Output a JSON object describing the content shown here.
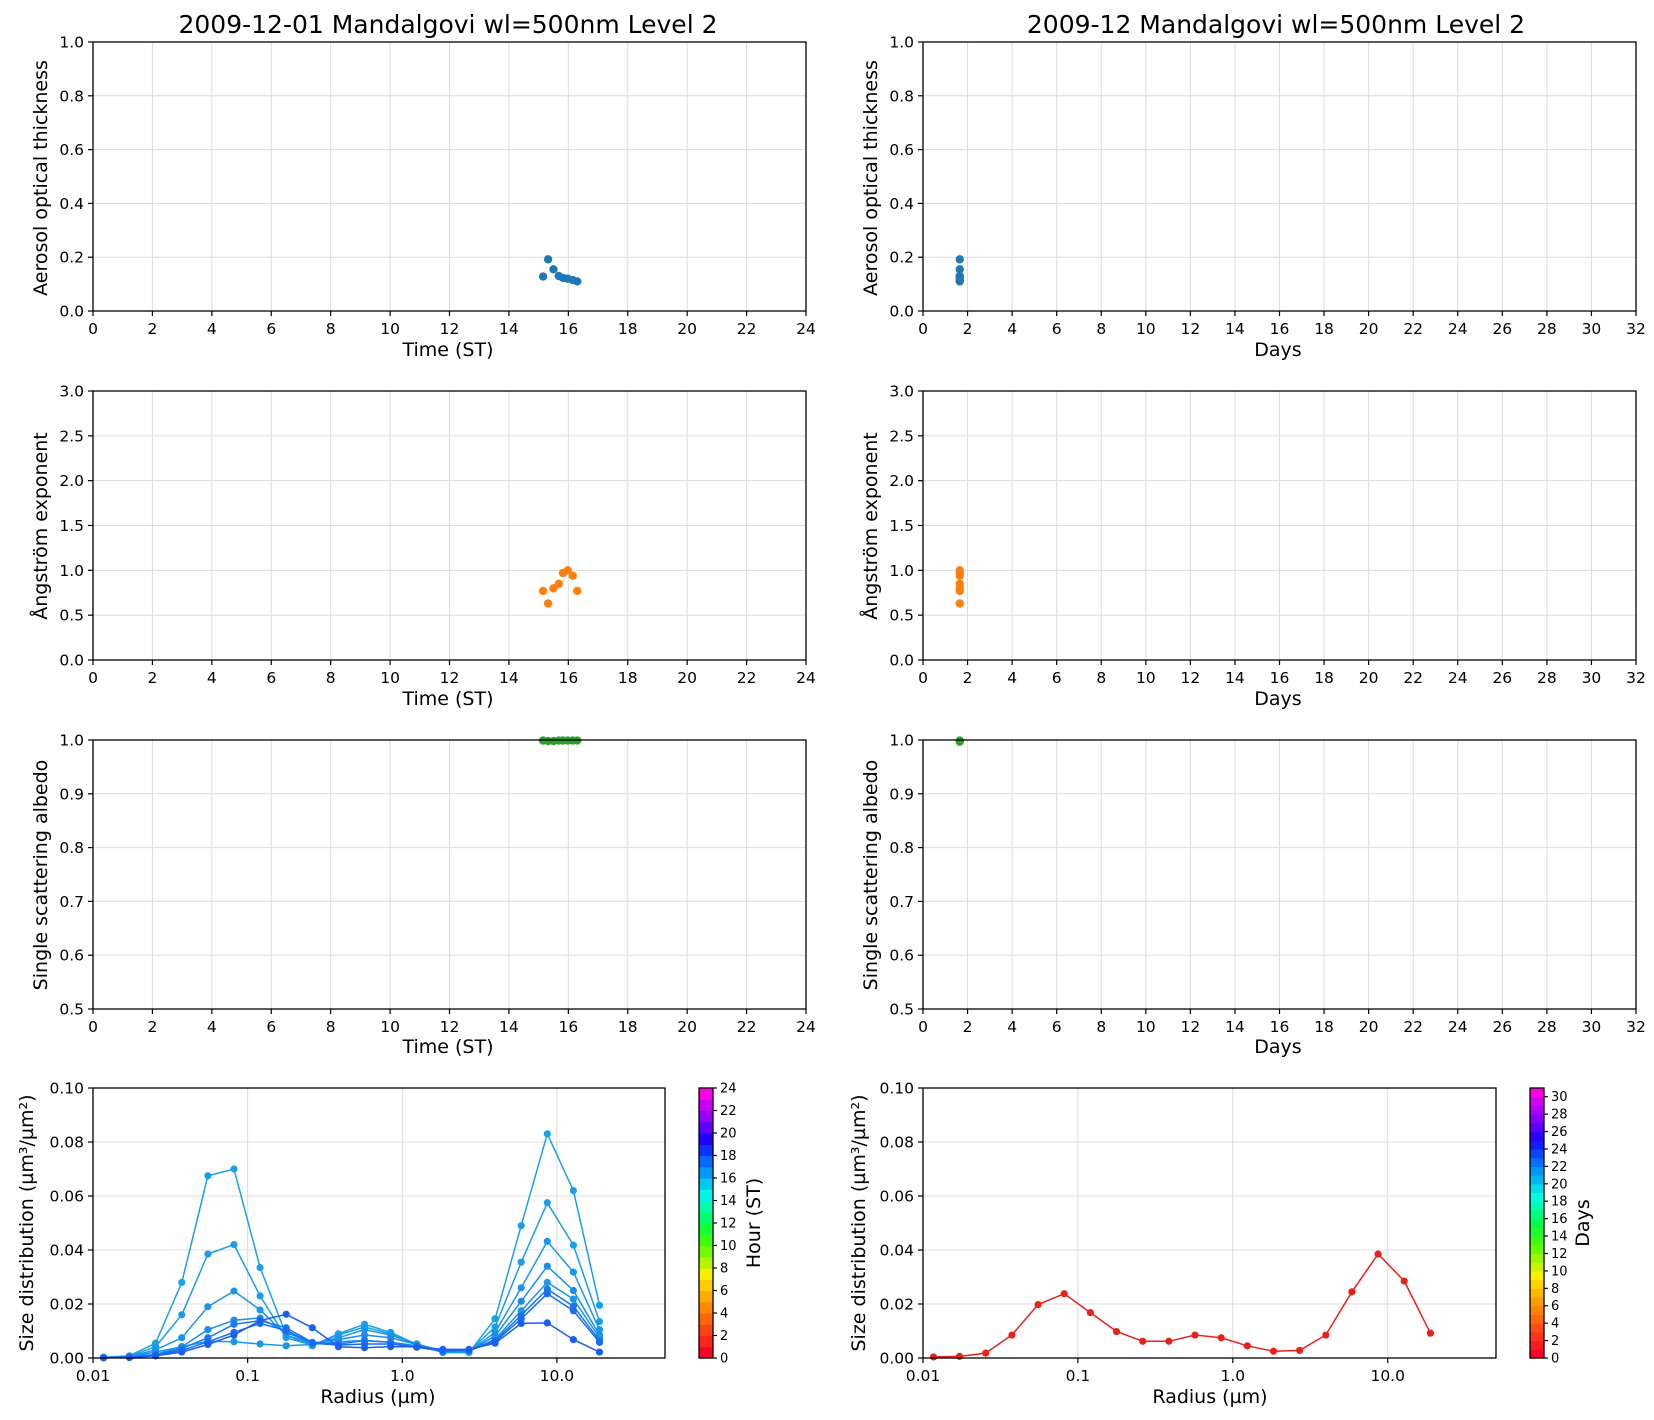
{
  "titles": {
    "left": "2009-12-01  Mandalgovi  wl=500nm  Level 2",
    "right": "2009-12  Mandalgovi  wl=500nm  Level 2"
  },
  "colors": {
    "aot": "#1f77b4",
    "angstrom": "#ff7f0e",
    "ssa": "#2ca02c",
    "monthly_size": "#e8211a",
    "grid": "#dcdcdc"
  },
  "chart_data": [
    {
      "id": "aot-daily",
      "type": "scatter",
      "color": "aot",
      "xlabel": "Time (ST)",
      "ylabel": "Aerosol optical thickness",
      "xlim": [
        0,
        24
      ],
      "ylim": [
        0,
        1.0
      ],
      "xticks": [
        "0",
        "2",
        "4",
        "6",
        "8",
        "10",
        "12",
        "14",
        "16",
        "18",
        "20",
        "22",
        "24"
      ],
      "yticks": [
        "0.0",
        "0.2",
        "0.4",
        "0.6",
        "0.8",
        "1.0"
      ],
      "grid": true,
      "points": [
        [
          15.15,
          0.128
        ],
        [
          15.32,
          0.192
        ],
        [
          15.5,
          0.155
        ],
        [
          15.68,
          0.13
        ],
        [
          15.82,
          0.123
        ],
        [
          15.98,
          0.12
        ],
        [
          16.15,
          0.115
        ],
        [
          16.3,
          0.11
        ]
      ]
    },
    {
      "id": "aot-monthly",
      "type": "scatter",
      "color": "aot",
      "xlabel": "Days",
      "ylabel": "Aerosol optical thickness",
      "xlim": [
        0,
        32
      ],
      "ylim": [
        0,
        1.0
      ],
      "xticks": [
        "0",
        "2",
        "4",
        "6",
        "8",
        "10",
        "12",
        "14",
        "16",
        "18",
        "20",
        "22",
        "24",
        "26",
        "28",
        "30",
        "32"
      ],
      "yticks": [
        "0.0",
        "0.2",
        "0.4",
        "0.6",
        "0.8",
        "1.0"
      ],
      "grid": true,
      "points": [
        [
          1.65,
          0.192
        ],
        [
          1.65,
          0.155
        ],
        [
          1.65,
          0.13
        ],
        [
          1.65,
          0.123
        ],
        [
          1.65,
          0.115
        ],
        [
          1.65,
          0.11
        ]
      ]
    },
    {
      "id": "angstrom-daily",
      "type": "scatter",
      "color": "angstrom",
      "xlabel": "Time (ST)",
      "ylabel": "Ångström exponent",
      "xlim": [
        0,
        24
      ],
      "ylim": [
        0,
        3.0
      ],
      "xticks": [
        "0",
        "2",
        "4",
        "6",
        "8",
        "10",
        "12",
        "14",
        "16",
        "18",
        "20",
        "22",
        "24"
      ],
      "yticks": [
        "0.0",
        "0.5",
        "1.0",
        "1.5",
        "2.0",
        "2.5",
        "3.0"
      ],
      "grid": true,
      "points": [
        [
          15.15,
          0.77
        ],
        [
          15.32,
          0.63
        ],
        [
          15.5,
          0.8
        ],
        [
          15.68,
          0.85
        ],
        [
          15.82,
          0.97
        ],
        [
          15.98,
          1.0
        ],
        [
          16.15,
          0.94
        ],
        [
          16.3,
          0.77
        ]
      ]
    },
    {
      "id": "angstrom-monthly",
      "type": "scatter",
      "color": "angstrom",
      "xlabel": "Days",
      "ylabel": "Ångström exponent",
      "xlim": [
        0,
        32
      ],
      "ylim": [
        0,
        3.0
      ],
      "xticks": [
        "0",
        "2",
        "4",
        "6",
        "8",
        "10",
        "12",
        "14",
        "16",
        "18",
        "20",
        "22",
        "24",
        "26",
        "28",
        "30",
        "32"
      ],
      "yticks": [
        "0.0",
        "0.5",
        "1.0",
        "1.5",
        "2.0",
        "2.5",
        "3.0"
      ],
      "grid": true,
      "points": [
        [
          1.65,
          1.0
        ],
        [
          1.65,
          0.97
        ],
        [
          1.65,
          0.94
        ],
        [
          1.65,
          0.85
        ],
        [
          1.65,
          0.8
        ],
        [
          1.65,
          0.77
        ],
        [
          1.65,
          0.63
        ]
      ]
    },
    {
      "id": "ssa-daily",
      "type": "scatter",
      "color": "ssa",
      "xlabel": "Time (ST)",
      "ylabel": "Single scattering albedo",
      "xlim": [
        0,
        24
      ],
      "ylim": [
        0.5,
        1.0
      ],
      "xticks": [
        "0",
        "2",
        "4",
        "6",
        "8",
        "10",
        "12",
        "14",
        "16",
        "18",
        "20",
        "22",
        "24"
      ],
      "yticks": [
        "0.5",
        "0.6",
        "0.7",
        "0.8",
        "0.9",
        "1.0"
      ],
      "grid": true,
      "points": [
        [
          15.15,
          0.999
        ],
        [
          15.32,
          0.998
        ],
        [
          15.5,
          0.998
        ],
        [
          15.68,
          0.999
        ],
        [
          15.82,
          0.999
        ],
        [
          15.98,
          0.999
        ],
        [
          16.15,
          0.999
        ],
        [
          16.3,
          0.999
        ]
      ]
    },
    {
      "id": "ssa-monthly",
      "type": "scatter",
      "color": "ssa",
      "xlabel": "Days",
      "ylabel": "Single scattering albedo",
      "xlim": [
        0,
        32
      ],
      "ylim": [
        0.5,
        1.0
      ],
      "xticks": [
        "0",
        "2",
        "4",
        "6",
        "8",
        "10",
        "12",
        "14",
        "16",
        "18",
        "20",
        "22",
        "24",
        "26",
        "28",
        "30",
        "32"
      ],
      "yticks": [
        "0.5",
        "0.6",
        "0.7",
        "0.8",
        "0.9",
        "1.0"
      ],
      "grid": true,
      "points": [
        [
          1.65,
          0.999
        ],
        [
          1.65,
          0.997
        ]
      ]
    },
    {
      "id": "size-daily",
      "type": "line",
      "xlabel": "Radius (µm)",
      "ylabel": "Size distribution (µm³/µm²)",
      "xscale": "log",
      "xlim": [
        0.01,
        50
      ],
      "ylim": [
        0,
        0.1
      ],
      "xticks": [
        "0.01",
        "0.1",
        "1.0",
        "10.0"
      ],
      "yticks": [
        "0.00",
        "0.02",
        "0.04",
        "0.06",
        "0.08",
        "0.10"
      ],
      "grid": true,
      "x": [
        0.0117,
        0.0172,
        0.0254,
        0.0375,
        0.0553,
        0.0816,
        0.1204,
        0.1776,
        0.2619,
        0.3865,
        0.5701,
        0.8409,
        1.241,
        1.83,
        2.699,
        3.982,
        5.874,
        8.665,
        12.78,
        18.86
      ],
      "series": [
        {
          "hour": 15.15,
          "values": [
            0.0003,
            0.0008,
            0.0055,
            0.028,
            0.0675,
            0.07,
            0.0335,
            0.0085,
            0.0045,
            0.009,
            0.0125,
            0.0095,
            0.005,
            0.002,
            0.002,
            0.0145,
            0.049,
            0.083,
            0.062,
            0.0195
          ]
        },
        {
          "hour": 15.32,
          "values": [
            0.0002,
            0.0006,
            0.0042,
            0.016,
            0.0385,
            0.042,
            0.023,
            0.0075,
            0.0048,
            0.0085,
            0.0115,
            0.009,
            0.0052,
            0.0025,
            0.0025,
            0.0115,
            0.0355,
            0.0575,
            0.0418,
            0.0135
          ]
        },
        {
          "hour": 15.5,
          "values": [
            0.0002,
            0.0005,
            0.003,
            0.0075,
            0.019,
            0.0248,
            0.0178,
            0.0085,
            0.0052,
            0.0075,
            0.0105,
            0.0085,
            0.0052,
            0.0025,
            0.0025,
            0.0095,
            0.026,
            0.0432,
            0.0318,
            0.0105
          ]
        },
        {
          "hour": 15.68,
          "values": [
            0.0001,
            0.0004,
            0.0022,
            0.0042,
            0.0105,
            0.014,
            0.0148,
            0.0095,
            0.0055,
            0.0068,
            0.0085,
            0.0075,
            0.005,
            0.0025,
            0.0025,
            0.0082,
            0.021,
            0.034,
            0.025,
            0.0085
          ]
        },
        {
          "hour": 15.82,
          "values": [
            0.0001,
            0.0003,
            0.0013,
            0.0042,
            0.0062,
            0.006,
            0.0052,
            0.0045,
            0.005,
            0.006,
            0.0065,
            0.0058,
            0.0045,
            0.0025,
            0.0025,
            0.007,
            0.0175,
            0.028,
            0.0218,
            0.0075
          ]
        },
        {
          "hour": 15.98,
          "values": [
            0.0001,
            0.0003,
            0.0012,
            0.0035,
            0.0075,
            0.0125,
            0.0138,
            0.0112,
            0.0058,
            0.0052,
            0.0065,
            0.0058,
            0.004,
            0.0025,
            0.0028,
            0.0065,
            0.0158,
            0.0255,
            0.0192,
            0.0065
          ]
        },
        {
          "hour": 16.15,
          "values": [
            0.0001,
            0.0002,
            0.001,
            0.0028,
            0.006,
            0.0095,
            0.0128,
            0.0102,
            0.0055,
            0.0048,
            0.0052,
            0.0052,
            0.004,
            0.0028,
            0.0028,
            0.006,
            0.0145,
            0.0238,
            0.0175,
            0.0058
          ]
        },
        {
          "hour": 16.3,
          "values": [
            0.0001,
            0.0002,
            0.0008,
            0.0022,
            0.005,
            0.0085,
            0.0138,
            0.0162,
            0.0112,
            0.0042,
            0.0038,
            0.0042,
            0.0042,
            0.0032,
            0.0032,
            0.0055,
            0.0128,
            0.013,
            0.0068,
            0.0022
          ]
        }
      ]
    },
    {
      "id": "size-monthly",
      "type": "line",
      "color": "monthly_size",
      "xlabel": "Radius (µm)",
      "ylabel": "Size distribution (µm³/µm²)",
      "xscale": "log",
      "xlim": [
        0.01,
        50
      ],
      "ylim": [
        0,
        0.1
      ],
      "xticks": [
        "0.01",
        "0.1",
        "1.0",
        "10.0"
      ],
      "yticks": [
        "0.00",
        "0.02",
        "0.04",
        "0.06",
        "0.08",
        "0.10"
      ],
      "grid": true,
      "x": [
        0.0117,
        0.0172,
        0.0254,
        0.0375,
        0.0553,
        0.0816,
        0.1204,
        0.1776,
        0.2619,
        0.3865,
        0.5701,
        0.8409,
        1.241,
        1.83,
        2.699,
        3.982,
        5.874,
        8.665,
        12.78,
        18.86
      ],
      "series": [
        {
          "day": 1.65,
          "values": [
            0.0004,
            0.0006,
            0.0018,
            0.0085,
            0.0198,
            0.0238,
            0.0168,
            0.0098,
            0.0062,
            0.0062,
            0.0085,
            0.0075,
            0.0045,
            0.0025,
            0.0028,
            0.0085,
            0.0245,
            0.0385,
            0.0285,
            0.0092
          ]
        }
      ]
    }
  ],
  "colorbars": [
    {
      "id": "cb-hour",
      "label": "Hour (ST)",
      "range": [
        0,
        24
      ],
      "ticks": [
        "0",
        "2",
        "4",
        "6",
        "8",
        "10",
        "12",
        "14",
        "16",
        "18",
        "20",
        "22",
        "24"
      ]
    },
    {
      "id": "cb-days",
      "label": "Days",
      "range": [
        0,
        31
      ],
      "ticks": [
        "0",
        "2",
        "4",
        "6",
        "8",
        "10",
        "12",
        "14",
        "16",
        "18",
        "20",
        "22",
        "24",
        "26",
        "28",
        "30"
      ]
    }
  ]
}
